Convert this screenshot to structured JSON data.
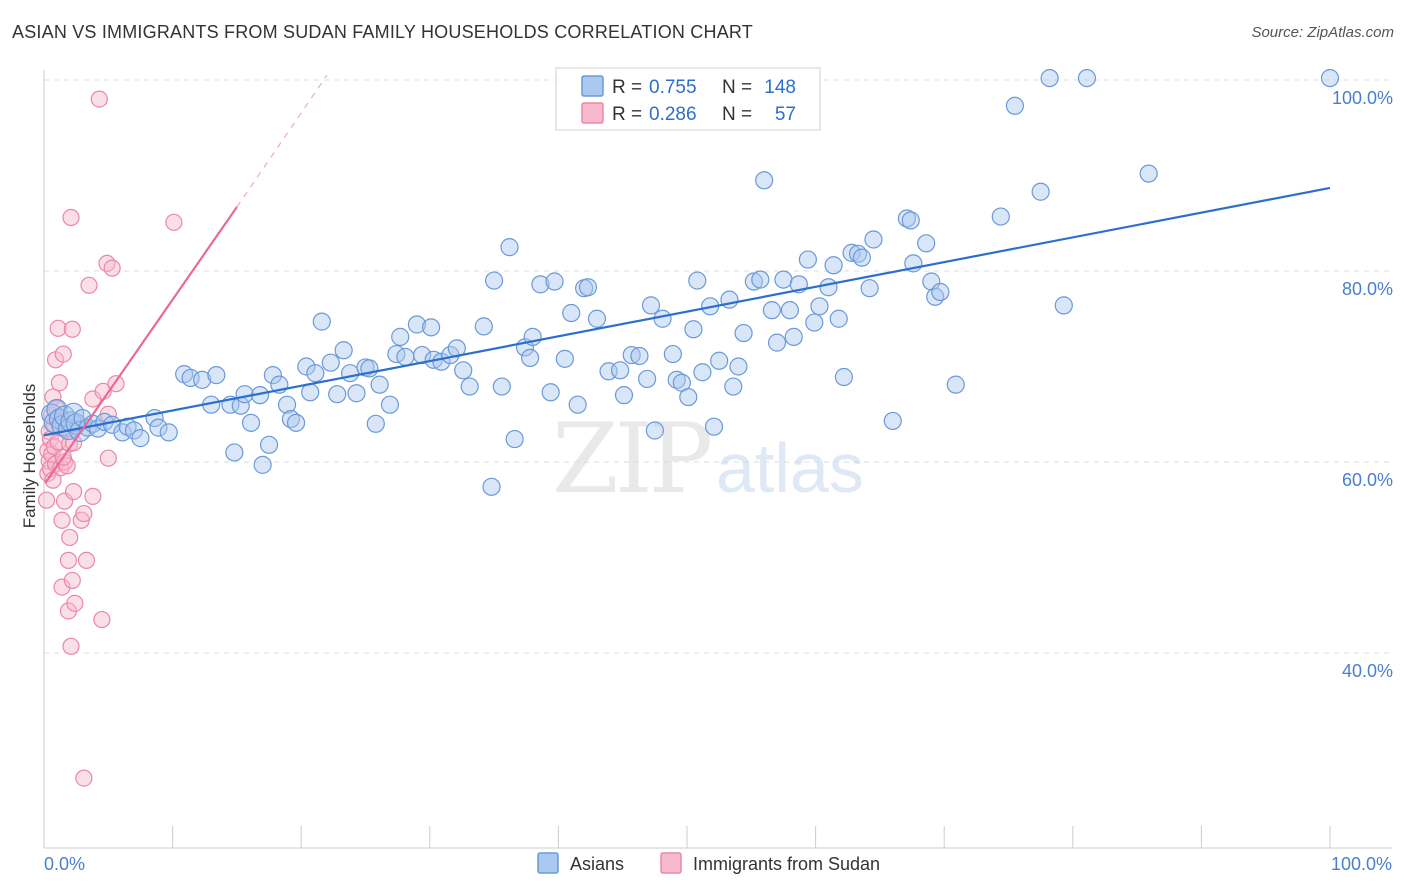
{
  "title": "ASIAN VS IMMIGRANTS FROM SUDAN FAMILY HOUSEHOLDS CORRELATION CHART",
  "source": "Source: ZipAtlas.com",
  "watermark": {
    "zip": "ZIP",
    "atlas": "atlas"
  },
  "colors": {
    "asian_fill": "#aac8f0",
    "asian_stroke": "#6a9ad8",
    "asian_line": "#2c6fcc",
    "sudan_fill": "#f7b9cc",
    "sudan_stroke": "#ec87a6",
    "sudan_line": "#e8699a",
    "axis_text": "#4a7fd0",
    "grid": "#dddddd"
  },
  "legend": {
    "rows": [
      {
        "r_label": "R =",
        "r_value": "0.755",
        "n_label": "N =",
        "n_value": "148"
      },
      {
        "r_label": "R =",
        "r_value": "0.286",
        "n_label": "N =",
        "n_value": "57"
      }
    ]
  },
  "bottom_legend": {
    "asians": "Asians",
    "sudan": "Immigrants from Sudan"
  },
  "chart_data": {
    "type": "scatter",
    "title": "ASIAN VS IMMIGRANTS FROM SUDAN FAMILY HOUSEHOLDS CORRELATION CHART",
    "xlabel": "",
    "ylabel": "Family Households",
    "xlim": [
      0,
      100
    ],
    "ylim": [
      20,
      102
    ],
    "x_tick_labels": [
      "0.0%",
      "100.0%"
    ],
    "y_ticks": [
      {
        "value": 100,
        "label": "100.0%"
      },
      {
        "value": 80,
        "label": "80.0%"
      },
      {
        "value": 60,
        "label": "60.0%"
      },
      {
        "value": 40,
        "label": "40.0%"
      }
    ],
    "series": [
      {
        "name": "Asians",
        "R": 0.755,
        "N": 148,
        "trend": {
          "x": [
            0,
            100
          ],
          "y": [
            62.8,
            88.7
          ]
        },
        "points": [
          [
            0.6,
            65.0
          ],
          [
            0.8,
            64.1
          ],
          [
            1.0,
            65.5
          ],
          [
            1.2,
            64.5
          ],
          [
            1.4,
            63.8
          ],
          [
            1.6,
            64.8
          ],
          [
            1.9,
            63.4
          ],
          [
            2.1,
            64.2
          ],
          [
            2.3,
            65.1
          ],
          [
            2.5,
            64.0
          ],
          [
            2.8,
            63.2
          ],
          [
            3.0,
            64.6
          ],
          [
            3.4,
            63.6
          ],
          [
            3.8,
            64.0
          ],
          [
            4.2,
            63.5
          ],
          [
            4.7,
            64.2
          ],
          [
            5.3,
            63.9
          ],
          [
            6.1,
            63.1
          ],
          [
            6.5,
            63.7
          ],
          [
            7.0,
            63.3
          ],
          [
            7.5,
            62.5
          ],
          [
            8.6,
            64.6
          ],
          [
            8.9,
            63.6
          ],
          [
            9.7,
            63.1
          ],
          [
            10.9,
            69.2
          ],
          [
            11.4,
            68.8
          ],
          [
            12.3,
            68.6
          ],
          [
            13.0,
            66.0
          ],
          [
            13.4,
            69.1
          ],
          [
            14.5,
            66.0
          ],
          [
            14.8,
            61.0
          ],
          [
            15.3,
            65.9
          ],
          [
            15.6,
            67.1
          ],
          [
            16.1,
            64.1
          ],
          [
            16.8,
            67.0
          ],
          [
            17.0,
            59.7
          ],
          [
            17.5,
            61.8
          ],
          [
            17.8,
            69.1
          ],
          [
            18.3,
            68.1
          ],
          [
            18.9,
            66.0
          ],
          [
            19.2,
            64.5
          ],
          [
            19.6,
            64.1
          ],
          [
            20.4,
            70.0
          ],
          [
            20.7,
            67.3
          ],
          [
            21.1,
            69.3
          ],
          [
            21.6,
            74.7
          ],
          [
            22.3,
            70.4
          ],
          [
            22.8,
            67.1
          ],
          [
            23.3,
            71.7
          ],
          [
            23.8,
            69.3
          ],
          [
            24.3,
            67.2
          ],
          [
            25.0,
            69.9
          ],
          [
            25.3,
            69.8
          ],
          [
            25.8,
            64.0
          ],
          [
            26.1,
            68.1
          ],
          [
            26.9,
            66.0
          ],
          [
            27.4,
            71.3
          ],
          [
            27.7,
            73.1
          ],
          [
            28.1,
            71.0
          ],
          [
            29.0,
            74.4
          ],
          [
            29.4,
            71.2
          ],
          [
            30.3,
            70.7
          ],
          [
            30.1,
            74.1
          ],
          [
            30.9,
            70.5
          ],
          [
            31.6,
            71.2
          ],
          [
            32.1,
            71.9
          ],
          [
            32.6,
            69.6
          ],
          [
            33.1,
            67.9
          ],
          [
            34.2,
            74.2
          ],
          [
            34.8,
            57.4
          ],
          [
            35.0,
            79.0
          ],
          [
            35.6,
            67.9
          ],
          [
            36.2,
            82.5
          ],
          [
            36.6,
            62.4
          ],
          [
            37.4,
            72.0
          ],
          [
            37.8,
            70.9
          ],
          [
            38.0,
            73.1
          ],
          [
            38.6,
            78.6
          ],
          [
            39.4,
            67.3
          ],
          [
            39.7,
            78.9
          ],
          [
            40.5,
            70.8
          ],
          [
            41.0,
            75.6
          ],
          [
            41.5,
            66.0
          ],
          [
            42.0,
            78.2
          ],
          [
            42.3,
            78.3
          ],
          [
            43.0,
            75.0
          ],
          [
            43.9,
            69.5
          ],
          [
            44.8,
            69.6
          ],
          [
            45.1,
            67.0
          ],
          [
            45.7,
            71.2
          ],
          [
            46.3,
            71.1
          ],
          [
            46.9,
            68.7
          ],
          [
            47.2,
            76.4
          ],
          [
            47.5,
            63.3
          ],
          [
            48.1,
            75.0
          ],
          [
            48.9,
            71.3
          ],
          [
            49.2,
            68.6
          ],
          [
            49.6,
            68.3
          ],
          [
            50.1,
            66.8
          ],
          [
            50.5,
            73.9
          ],
          [
            50.8,
            79.0
          ],
          [
            51.2,
            69.4
          ],
          [
            51.8,
            76.3
          ],
          [
            52.1,
            63.7
          ],
          [
            52.5,
            70.6
          ],
          [
            53.3,
            77.0
          ],
          [
            53.6,
            67.9
          ],
          [
            54.0,
            70.0
          ],
          [
            54.4,
            73.5
          ],
          [
            55.2,
            78.9
          ],
          [
            55.7,
            79.1
          ],
          [
            56.0,
            89.5
          ],
          [
            56.6,
            75.9
          ],
          [
            57.0,
            72.5
          ],
          [
            57.5,
            79.1
          ],
          [
            58.0,
            75.9
          ],
          [
            58.3,
            73.1
          ],
          [
            58.7,
            78.6
          ],
          [
            59.4,
            81.2
          ],
          [
            59.9,
            74.6
          ],
          [
            60.3,
            76.3
          ],
          [
            61.0,
            78.3
          ],
          [
            61.4,
            80.6
          ],
          [
            61.8,
            75.0
          ],
          [
            62.2,
            68.9
          ],
          [
            62.8,
            81.9
          ],
          [
            63.3,
            81.8
          ],
          [
            63.6,
            81.4
          ],
          [
            64.2,
            78.2
          ],
          [
            64.5,
            83.3
          ],
          [
            66.0,
            64.3
          ],
          [
            67.1,
            85.5
          ],
          [
            67.4,
            85.3
          ],
          [
            67.6,
            80.8
          ],
          [
            68.6,
            82.9
          ],
          [
            69.0,
            78.9
          ],
          [
            69.3,
            77.3
          ],
          [
            69.7,
            77.8
          ],
          [
            70.9,
            68.1
          ],
          [
            74.4,
            85.7
          ],
          [
            75.5,
            97.3
          ],
          [
            77.5,
            88.3
          ],
          [
            78.2,
            100.2
          ],
          [
            79.3,
            76.4
          ],
          [
            81.1,
            100.2
          ],
          [
            85.9,
            90.2
          ],
          [
            100.0,
            100.2
          ]
        ]
      },
      {
        "name": "Immigrants from Sudan",
        "R": 0.286,
        "N": 57,
        "trend": {
          "x": [
            0.1,
            15
          ],
          "y": [
            57.8,
            86.7
          ]
        },
        "trend_dashed": {
          "x": [
            15,
            22
          ],
          "y": [
            86.7,
            100.5
          ]
        },
        "points": [
          [
            0.2,
            56.0
          ],
          [
            0.3,
            61.2
          ],
          [
            0.3,
            58.8
          ],
          [
            0.4,
            60.1
          ],
          [
            0.4,
            63.2
          ],
          [
            0.5,
            62.4
          ],
          [
            0.5,
            59.3
          ],
          [
            0.6,
            64.9
          ],
          [
            0.6,
            60.8
          ],
          [
            0.7,
            66.8
          ],
          [
            0.7,
            58.1
          ],
          [
            0.8,
            61.6
          ],
          [
            0.8,
            63.9
          ],
          [
            0.9,
            59.8
          ],
          [
            0.9,
            70.7
          ],
          [
            1.0,
            65.6
          ],
          [
            1.1,
            74.0
          ],
          [
            1.1,
            62.1
          ],
          [
            1.2,
            68.3
          ],
          [
            1.3,
            59.4
          ],
          [
            1.3,
            64.5
          ],
          [
            1.4,
            53.9
          ],
          [
            1.4,
            46.9
          ],
          [
            1.5,
            71.3
          ],
          [
            1.6,
            60.0
          ],
          [
            1.6,
            55.9
          ],
          [
            1.7,
            63.4
          ],
          [
            1.8,
            59.6
          ],
          [
            1.9,
            49.7
          ],
          [
            1.9,
            44.4
          ],
          [
            2.0,
            61.9
          ],
          [
            2.0,
            52.1
          ],
          [
            2.1,
            85.6
          ],
          [
            2.1,
            40.7
          ],
          [
            2.2,
            73.9
          ],
          [
            2.2,
            47.6
          ],
          [
            2.3,
            62.0
          ],
          [
            2.3,
            56.9
          ],
          [
            2.4,
            45.2
          ],
          [
            2.6,
            64.0
          ],
          [
            2.9,
            53.9
          ],
          [
            3.1,
            54.6
          ],
          [
            3.1,
            26.9
          ],
          [
            3.3,
            49.7
          ],
          [
            3.5,
            78.5
          ],
          [
            3.8,
            56.4
          ],
          [
            3.8,
            66.6
          ],
          [
            4.3,
            98.0
          ],
          [
            4.5,
            43.5
          ],
          [
            4.6,
            67.4
          ],
          [
            4.9,
            80.8
          ],
          [
            5.0,
            60.4
          ],
          [
            5.0,
            65.0
          ],
          [
            5.3,
            80.3
          ],
          [
            5.6,
            68.2
          ],
          [
            10.1,
            85.1
          ],
          [
            1.5,
            60.5
          ]
        ]
      }
    ]
  }
}
